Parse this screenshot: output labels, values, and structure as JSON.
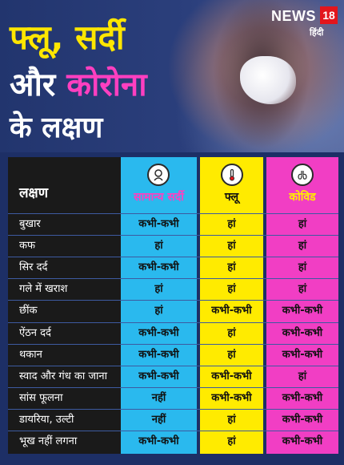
{
  "title": {
    "line1": "फ्लू, सर्दी",
    "line2_prefix": "और ",
    "line2_highlight": "कोरोना",
    "line3": "के लक्षण"
  },
  "brand": {
    "name": "NEWS",
    "number": "18",
    "language": "हिंदी"
  },
  "colors": {
    "background": "#1d2f66",
    "yellow": "#ffeb00",
    "blue": "#2ab9ee",
    "pink": "#f13ec4",
    "title_pink": "#ff3fc0"
  },
  "table": {
    "label_header": "लक्षण",
    "columns": [
      {
        "label": "सामान्य सर्दी",
        "icon": "cold-person-icon"
      },
      {
        "label": "फ्लू",
        "icon": "thermometer-icon"
      },
      {
        "label": "कोविड",
        "icon": "lungs-virus-icon"
      }
    ],
    "rows": [
      {
        "symptom": "बुखार",
        "values": [
          "कभी-कभी",
          "हां",
          "हां"
        ]
      },
      {
        "symptom": "कफ",
        "values": [
          "हां",
          "हां",
          "हां"
        ]
      },
      {
        "symptom": "सिर दर्द",
        "values": [
          "कभी-कभी",
          "हां",
          "हां"
        ]
      },
      {
        "symptom": "गले में खराश",
        "values": [
          "हां",
          "हां",
          "हां"
        ]
      },
      {
        "symptom": "छींक",
        "values": [
          "हां",
          "कभी-कभी",
          "कभी-कभी"
        ]
      },
      {
        "symptom": "ऐंठन दर्द",
        "values": [
          "कभी-कभी",
          "हां",
          "कभी-कभी"
        ]
      },
      {
        "symptom": "थकान",
        "values": [
          "कभी-कभी",
          "हां",
          "कभी-कभी"
        ]
      },
      {
        "symptom": "स्वाद और गंध का जाना",
        "values": [
          "कभी-कभी",
          "कभी-कभी",
          "हां"
        ]
      },
      {
        "symptom": "सांस फूलना",
        "values": [
          "नहीं",
          "कभी-कभी",
          "कभी-कभी"
        ]
      },
      {
        "symptom": "डायरिया, उल्टी",
        "values": [
          "नहीं",
          "हां",
          "कभी-कभी"
        ]
      },
      {
        "symptom": "भूख नहीं लगना",
        "values": [
          "कभी-कभी",
          "हां",
          "कभी-कभी"
        ]
      }
    ]
  }
}
